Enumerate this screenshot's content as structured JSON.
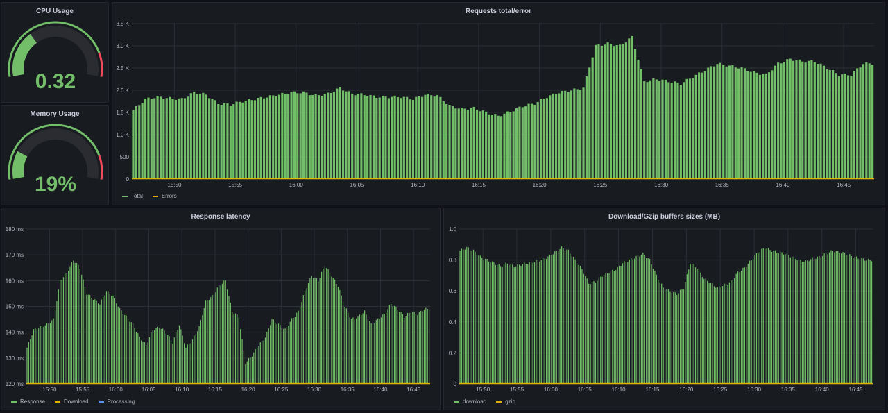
{
  "colors": {
    "bar": "#73bf69",
    "error_line": "#e0b400",
    "gauge_red": "#f2495c",
    "gauge_track": "#2a2c31",
    "grid": "#2c2f36"
  },
  "cpu": {
    "title": "CPU Usage",
    "value_text": "0.32",
    "fraction": 0.32
  },
  "memory": {
    "title": "Memory Usage",
    "value_text": "19%",
    "fraction": 0.19
  },
  "requests": {
    "title": "Requests total/error",
    "legend": [
      {
        "name": "Total",
        "color": "#73bf69"
      },
      {
        "name": "Errors",
        "color": "#e0b400"
      }
    ],
    "y_ticks": [
      "0",
      "500",
      "1.0 K",
      "1.5 K",
      "2.0 K",
      "2.5 K",
      "3.0 K",
      "3.5 K"
    ],
    "x_ticks": [
      "15:50",
      "15:55",
      "16:00",
      "16:05",
      "16:10",
      "16:15",
      "16:20",
      "16:25",
      "16:30",
      "16:35",
      "16:40",
      "16:45"
    ]
  },
  "latency": {
    "title": "Response latency",
    "legend": [
      {
        "name": "Response",
        "color": "#73bf69"
      },
      {
        "name": "Download",
        "color": "#e0b400"
      },
      {
        "name": "Processing",
        "color": "#5794f2"
      }
    ],
    "y_ticks": [
      "120 ms",
      "130 ms",
      "140 ms",
      "150 ms",
      "160 ms",
      "170 ms",
      "180 ms"
    ],
    "x_ticks": [
      "15:50",
      "15:55",
      "16:00",
      "16:05",
      "16:10",
      "16:15",
      "16:20",
      "16:25",
      "16:30",
      "16:35",
      "16:40",
      "16:45"
    ]
  },
  "buffers": {
    "title": "Download/Gzip buffers sizes (MB)",
    "legend": [
      {
        "name": "download",
        "color": "#73bf69"
      },
      {
        "name": "gzip",
        "color": "#e0b400"
      }
    ],
    "y_ticks": [
      "0",
      "0.2",
      "0.4",
      "0.6",
      "0.8",
      "1.0"
    ],
    "x_ticks": [
      "15:50",
      "15:55",
      "16:00",
      "16:05",
      "16:10",
      "16:15",
      "16:20",
      "16:25",
      "16:30",
      "16:35",
      "16:40",
      "16:45"
    ]
  },
  "chart_data": [
    {
      "type": "bar",
      "title": "Requests total/error",
      "x": [
        "15:47",
        "15:48",
        "15:49",
        "15:50",
        "15:51",
        "15:52",
        "15:53",
        "15:54",
        "15:55",
        "15:56",
        "15:57",
        "15:58",
        "15:59",
        "16:00",
        "16:01",
        "16:02",
        "16:03",
        "16:04",
        "16:05",
        "16:06",
        "16:07",
        "16:08",
        "16:09",
        "16:10",
        "16:11",
        "16:12",
        "16:13",
        "16:14",
        "16:15",
        "16:16",
        "16:17",
        "16:18",
        "16:19",
        "16:20",
        "16:21",
        "16:22",
        "16:23",
        "16:24",
        "16:25",
        "16:26",
        "16:27",
        "16:28",
        "16:29",
        "16:30",
        "16:31",
        "16:32",
        "16:33",
        "16:34",
        "16:35",
        "16:36",
        "16:37",
        "16:38",
        "16:39",
        "16:40",
        "16:41",
        "16:42",
        "16:43",
        "16:44",
        "16:45",
        "16:46",
        "16:47"
      ],
      "ylim": [
        0,
        3500
      ],
      "series": [
        {
          "name": "Total",
          "values": [
            1550,
            1800,
            1850,
            1820,
            1800,
            1950,
            1900,
            1700,
            1680,
            1750,
            1800,
            1850,
            1900,
            1950,
            1950,
            1880,
            1920,
            2050,
            1920,
            1900,
            1850,
            1850,
            1850,
            1800,
            1900,
            1880,
            1650,
            1580,
            1600,
            1500,
            1420,
            1520,
            1640,
            1700,
            1850,
            1950,
            2000,
            2050,
            3000,
            3050,
            3000,
            3200,
            2200,
            2250,
            2200,
            2150,
            2300,
            2450,
            2600,
            2550,
            2500,
            2400,
            2350,
            2600,
            2700,
            2650,
            2650,
            2500,
            2350,
            2350,
            2600
          ]
        },
        {
          "name": "Errors",
          "values": [
            0,
            0,
            0,
            0,
            0,
            0,
            0,
            0,
            0,
            0,
            0,
            0,
            0,
            0,
            0,
            0,
            0,
            0,
            0,
            0,
            0,
            0,
            0,
            0,
            0,
            0,
            0,
            0,
            0,
            0,
            0,
            0,
            0,
            0,
            0,
            0,
            0,
            0,
            0,
            0,
            0,
            0,
            0,
            0,
            0,
            0,
            0,
            0,
            0,
            0,
            0,
            0,
            0,
            0,
            0,
            0,
            0,
            0,
            0,
            0,
            0
          ]
        }
      ]
    },
    {
      "type": "bar",
      "title": "Response latency",
      "x": [
        "15:47",
        "15:48",
        "15:49",
        "15:50",
        "15:51",
        "15:52",
        "15:53",
        "15:54",
        "15:55",
        "15:56",
        "15:57",
        "15:58",
        "15:59",
        "16:00",
        "16:01",
        "16:02",
        "16:03",
        "16:04",
        "16:05",
        "16:06",
        "16:07",
        "16:08",
        "16:09",
        "16:10",
        "16:11",
        "16:12",
        "16:13",
        "16:14",
        "16:15",
        "16:16",
        "16:17",
        "16:18",
        "16:19",
        "16:20",
        "16:21",
        "16:22",
        "16:23",
        "16:24",
        "16:25",
        "16:26",
        "16:27",
        "16:28",
        "16:29",
        "16:30",
        "16:31",
        "16:32",
        "16:33",
        "16:34",
        "16:35",
        "16:36",
        "16:37",
        "16:38",
        "16:39",
        "16:40",
        "16:41",
        "16:42",
        "16:43",
        "16:44",
        "16:45",
        "16:46",
        "16:47"
      ],
      "ylim": [
        120,
        180
      ],
      "series": [
        {
          "name": "Response",
          "values": [
            134,
            141,
            142,
            143,
            145,
            160,
            163,
            168,
            165,
            155,
            153,
            151,
            156,
            154,
            149,
            146,
            143,
            138,
            135,
            141,
            142,
            140,
            136,
            143,
            134,
            137,
            142,
            152,
            154,
            158,
            160,
            148,
            146,
            128,
            131,
            135,
            138,
            145,
            143,
            141,
            145,
            148,
            156,
            162,
            160,
            166,
            162,
            158,
            150,
            145,
            146,
            148,
            143,
            145,
            147,
            151,
            149,
            146,
            148,
            147,
            149
          ]
        },
        {
          "name": "Download",
          "values": [
            0,
            0,
            0,
            0,
            0,
            0,
            0,
            0,
            0,
            0,
            0,
            0,
            0,
            0,
            0,
            0,
            0,
            0,
            0,
            0,
            0,
            0,
            0,
            0,
            0,
            0,
            0,
            0,
            0,
            0,
            0,
            0,
            0,
            0,
            0,
            0,
            0,
            0,
            0,
            0,
            0,
            0,
            0,
            0,
            0,
            0,
            0,
            0,
            0,
            0,
            0,
            0,
            0,
            0,
            0,
            0,
            0,
            0,
            0,
            0,
            0
          ]
        }
      ]
    },
    {
      "type": "bar",
      "title": "Download/Gzip buffers sizes (MB)",
      "x": [
        "15:47",
        "15:48",
        "15:49",
        "15:50",
        "15:51",
        "15:52",
        "15:53",
        "15:54",
        "15:55",
        "15:56",
        "15:57",
        "15:58",
        "15:59",
        "16:00",
        "16:01",
        "16:02",
        "16:03",
        "16:04",
        "16:05",
        "16:06",
        "16:07",
        "16:08",
        "16:09",
        "16:10",
        "16:11",
        "16:12",
        "16:13",
        "16:14",
        "16:15",
        "16:16",
        "16:17",
        "16:18",
        "16:19",
        "16:20",
        "16:21",
        "16:22",
        "16:23",
        "16:24",
        "16:25",
        "16:26",
        "16:27",
        "16:28",
        "16:29",
        "16:30",
        "16:31",
        "16:32",
        "16:33",
        "16:34",
        "16:35",
        "16:36",
        "16:37",
        "16:38",
        "16:39",
        "16:40",
        "16:41",
        "16:42",
        "16:43",
        "16:44",
        "16:45",
        "16:46",
        "16:47"
      ],
      "ylim": [
        0,
        1.0
      ],
      "series": [
        {
          "name": "download",
          "values": [
            0.86,
            0.88,
            0.86,
            0.82,
            0.8,
            0.78,
            0.76,
            0.78,
            0.76,
            0.77,
            0.78,
            0.79,
            0.8,
            0.82,
            0.85,
            0.88,
            0.86,
            0.8,
            0.74,
            0.65,
            0.66,
            0.7,
            0.72,
            0.74,
            0.78,
            0.8,
            0.82,
            0.84,
            0.8,
            0.7,
            0.62,
            0.6,
            0.58,
            0.62,
            0.78,
            0.75,
            0.68,
            0.65,
            0.62,
            0.64,
            0.66,
            0.72,
            0.75,
            0.8,
            0.85,
            0.88,
            0.86,
            0.85,
            0.84,
            0.82,
            0.8,
            0.79,
            0.81,
            0.82,
            0.84,
            0.86,
            0.85,
            0.84,
            0.82,
            0.81,
            0.8
          ]
        },
        {
          "name": "gzip",
          "values": [
            0,
            0,
            0,
            0,
            0,
            0,
            0,
            0,
            0,
            0,
            0,
            0,
            0,
            0,
            0,
            0,
            0,
            0,
            0,
            0,
            0,
            0,
            0,
            0,
            0,
            0,
            0,
            0,
            0,
            0,
            0,
            0,
            0,
            0,
            0,
            0,
            0,
            0,
            0,
            0,
            0,
            0,
            0,
            0,
            0,
            0,
            0,
            0,
            0,
            0,
            0,
            0,
            0,
            0,
            0,
            0,
            0,
            0,
            0,
            0,
            0
          ]
        }
      ]
    }
  ]
}
